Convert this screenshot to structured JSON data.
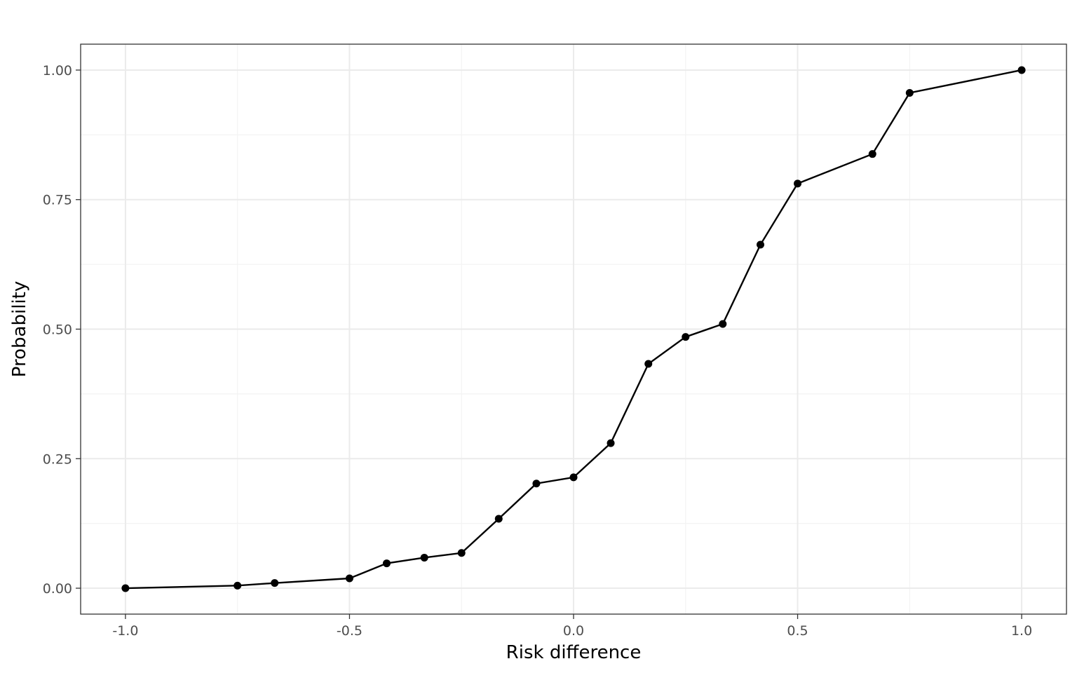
{
  "chart_data": {
    "type": "line",
    "title": "",
    "xlabel": "Risk difference",
    "ylabel": "Probability",
    "xlim": [
      -1.1,
      1.1
    ],
    "ylim": [
      -0.05,
      1.05
    ],
    "x_ticks": [
      -1.0,
      -0.5,
      0.0,
      0.5,
      1.0
    ],
    "x_tick_labels": [
      "-1.0",
      "-0.5",
      "0.0",
      "0.5",
      "1.0"
    ],
    "y_ticks": [
      0.0,
      0.25,
      0.5,
      0.75,
      1.0
    ],
    "y_tick_labels": [
      "0.00",
      "0.25",
      "0.50",
      "0.75",
      "1.00"
    ],
    "x_minor": [
      -0.75,
      -0.25,
      0.25,
      0.75
    ],
    "y_minor": [
      0.125,
      0.375,
      0.625,
      0.875
    ],
    "grid": true,
    "legend": "none",
    "color": "#000000",
    "series": [
      {
        "x": [
          -1.0,
          -0.75,
          -0.667,
          -0.5,
          -0.417,
          -0.333,
          -0.25,
          -0.167,
          -0.083,
          0.0,
          0.083,
          0.167,
          0.25,
          0.333,
          0.417,
          0.5,
          0.667,
          0.75,
          1.0
        ],
        "y": [
          0.0,
          0.005,
          0.01,
          0.019,
          0.048,
          0.059,
          0.068,
          0.134,
          0.202,
          0.214,
          0.28,
          0.433,
          0.485,
          0.51,
          0.663,
          0.781,
          0.838,
          0.956,
          1.0
        ]
      }
    ]
  }
}
